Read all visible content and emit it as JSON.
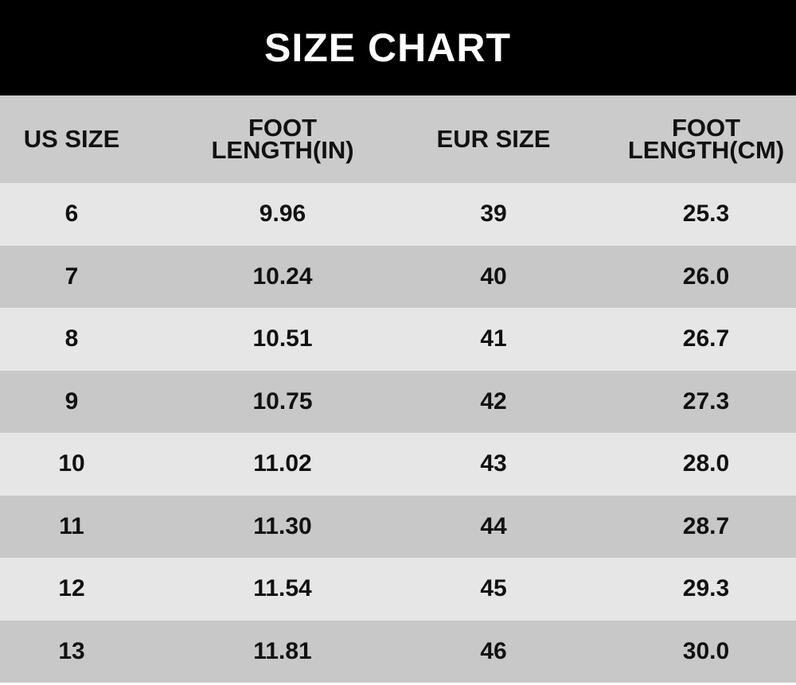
{
  "title": "SIZE CHART",
  "headers": [
    "US SIZE",
    "FOOT\nLENGTH(IN)",
    "EUR SIZE",
    "FOOT\nLENGTH(CM)"
  ],
  "header_lines": {
    "us": "US SIZE",
    "in_1": "FOOT",
    "in_2": "LENGTH(IN)",
    "eur": "EUR SIZE",
    "cm_1": "FOOT",
    "cm_2": "LENGTH(CM)"
  },
  "rows": [
    [
      "6",
      "9.96",
      "39",
      "25.3"
    ],
    [
      "7",
      "10.24",
      "40",
      "26.0"
    ],
    [
      "8",
      "10.51",
      "41",
      "26.7"
    ],
    [
      "9",
      "10.75",
      "42",
      "27.3"
    ],
    [
      "10",
      "11.02",
      "43",
      "28.0"
    ],
    [
      "11",
      "11.30",
      "44",
      "28.7"
    ],
    [
      "12",
      "11.54",
      "45",
      "29.3"
    ],
    [
      "13",
      "11.81",
      "46",
      "30.0"
    ]
  ],
  "colors": {
    "title_bg": "#000000",
    "header_bg": "#cbcbcb",
    "row_light": "#e6e6e6",
    "row_dark": "#c8c8c8"
  }
}
